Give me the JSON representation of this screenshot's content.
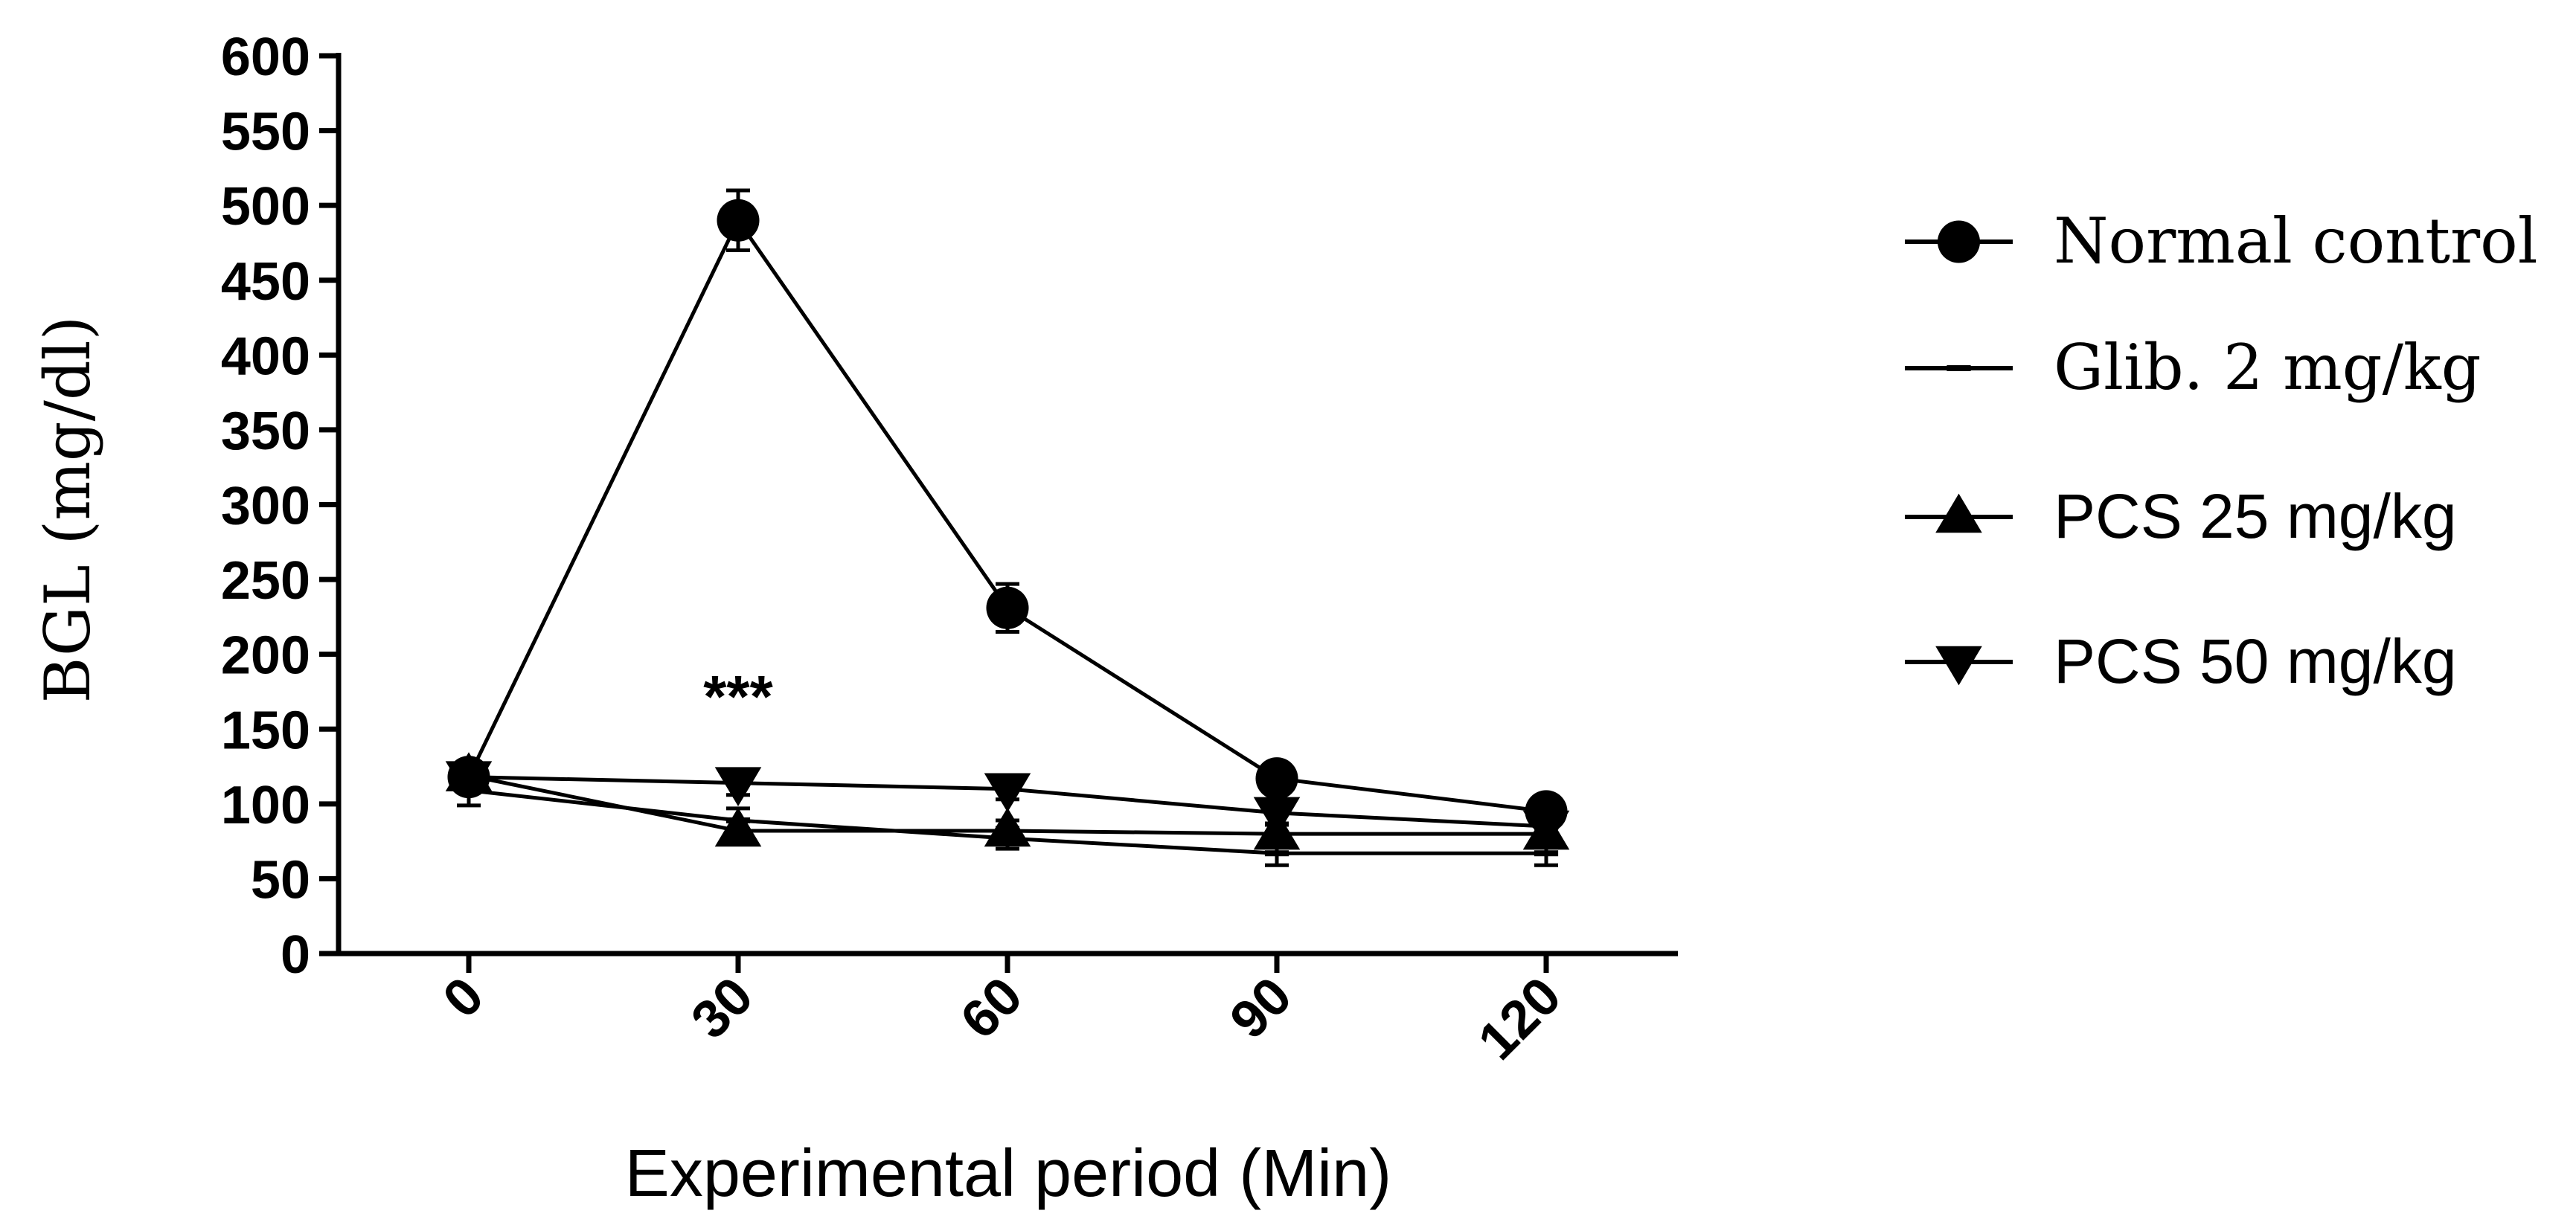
{
  "chart_data": {
    "type": "line",
    "title": "",
    "xlabel": "Experimental period (Min)",
    "ylabel": "BGL (mg/dl)",
    "x": [
      0,
      30,
      60,
      90,
      120
    ],
    "x_tick_labels": [
      "0",
      "30",
      "60",
      "90",
      "120"
    ],
    "ylim": [
      0,
      600
    ],
    "y_ticks": [
      0,
      50,
      100,
      150,
      200,
      250,
      300,
      350,
      400,
      450,
      500,
      550,
      600
    ],
    "y_tick_labels": [
      "0",
      "50",
      "100",
      "150",
      "200",
      "250",
      "300",
      "350",
      "400",
      "450",
      "500",
      "550",
      "600"
    ],
    "grid": false,
    "legend_position": "right",
    "series": [
      {
        "name": "Normal control",
        "marker": "circle",
        "legend_font": "serif",
        "values": [
          118,
          490,
          231,
          117,
          95
        ],
        "errors": [
          8,
          20,
          16,
          8,
          5
        ]
      },
      {
        "name": "Glib. 2 mg/kg",
        "marker": "dash",
        "legend_font": "serif",
        "values": [
          109,
          89,
          77,
          67,
          67
        ],
        "errors": [
          10,
          8,
          7,
          8,
          8
        ]
      },
      {
        "name": "PCS 25 mg/kg",
        "marker": "triangle-up",
        "legend_font": "sans",
        "values": [
          119,
          82,
          82,
          80,
          80
        ],
        "errors": [
          7,
          7,
          7,
          7,
          6
        ]
      },
      {
        "name": "PCS 50 mg/kg",
        "marker": "triangle-down",
        "legend_font": "sans",
        "values": [
          118,
          114,
          110,
          94,
          85
        ],
        "errors": [
          8,
          8,
          7,
          8,
          6
        ]
      }
    ],
    "annotations": [
      {
        "text": "***",
        "x": 30,
        "y": 172
      }
    ]
  }
}
